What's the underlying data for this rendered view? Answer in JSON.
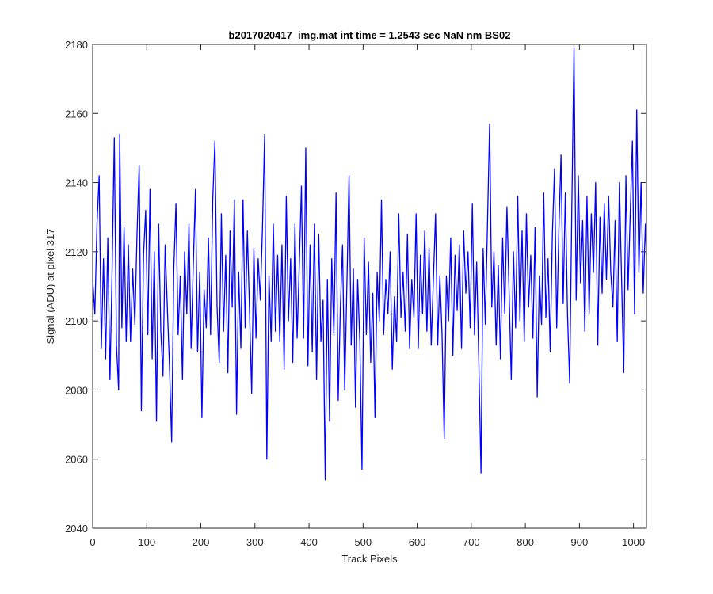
{
  "chart_data": {
    "type": "line",
    "title": "b2017020417_img.mat int time = 1.2543 sec  NaN nm BS02",
    "xlabel": "Track Pixels",
    "ylabel": "Signal (ADU) at pixel 317",
    "xlim": [
      0,
      1024
    ],
    "ylim": [
      2040,
      2180
    ],
    "xticks": [
      0,
      100,
      200,
      300,
      400,
      500,
      600,
      700,
      800,
      900,
      1000
    ],
    "yticks": [
      2040,
      2060,
      2080,
      2100,
      2120,
      2140,
      2160,
      2180
    ],
    "grid": false,
    "legend": "none",
    "line_color": "#0000ff",
    "series": [
      {
        "points": [
          [
            0,
            2112
          ],
          [
            4,
            2102
          ],
          [
            8,
            2128
          ],
          [
            12,
            2142
          ],
          [
            16,
            2092
          ],
          [
            20,
            2118
          ],
          [
            24,
            2089
          ],
          [
            28,
            2124
          ],
          [
            32,
            2083
          ],
          [
            36,
            2115
          ],
          [
            40,
            2153
          ],
          [
            44,
            2093
          ],
          [
            48,
            2080
          ],
          [
            50,
            2154
          ],
          [
            54,
            2098
          ],
          [
            58,
            2127
          ],
          [
            62,
            2094
          ],
          [
            66,
            2122
          ],
          [
            70,
            2094
          ],
          [
            74,
            2115
          ],
          [
            78,
            2099
          ],
          [
            82,
            2125
          ],
          [
            86,
            2145
          ],
          [
            90,
            2074
          ],
          [
            94,
            2119
          ],
          [
            98,
            2132
          ],
          [
            102,
            2096
          ],
          [
            106,
            2138
          ],
          [
            110,
            2089
          ],
          [
            114,
            2120
          ],
          [
            118,
            2071
          ],
          [
            122,
            2128
          ],
          [
            126,
            2097
          ],
          [
            130,
            2084
          ],
          [
            134,
            2122
          ],
          [
            138,
            2104
          ],
          [
            142,
            2087
          ],
          [
            146,
            2065
          ],
          [
            150,
            2115
          ],
          [
            154,
            2134
          ],
          [
            158,
            2096
          ],
          [
            162,
            2113
          ],
          [
            166,
            2083
          ],
          [
            170,
            2120
          ],
          [
            174,
            2102
          ],
          [
            178,
            2128
          ],
          [
            182,
            2092
          ],
          [
            186,
            2116
          ],
          [
            190,
            2138
          ],
          [
            194,
            2091
          ],
          [
            198,
            2114
          ],
          [
            202,
            2072
          ],
          [
            206,
            2109
          ],
          [
            210,
            2098
          ],
          [
            214,
            2124
          ],
          [
            218,
            2096
          ],
          [
            222,
            2135
          ],
          [
            226,
            2152
          ],
          [
            230,
            2104
          ],
          [
            234,
            2088
          ],
          [
            238,
            2131
          ],
          [
            242,
            2097
          ],
          [
            246,
            2119
          ],
          [
            250,
            2085
          ],
          [
            254,
            2126
          ],
          [
            258,
            2104
          ],
          [
            262,
            2135
          ],
          [
            266,
            2073
          ],
          [
            270,
            2114
          ],
          [
            274,
            2092
          ],
          [
            278,
            2135
          ],
          [
            282,
            2098
          ],
          [
            286,
            2126
          ],
          [
            290,
            2103
          ],
          [
            294,
            2079
          ],
          [
            298,
            2121
          ],
          [
            302,
            2095
          ],
          [
            306,
            2118
          ],
          [
            310,
            2106
          ],
          [
            314,
            2127
          ],
          [
            318,
            2154
          ],
          [
            322,
            2060
          ],
          [
            326,
            2113
          ],
          [
            330,
            2094
          ],
          [
            334,
            2128
          ],
          [
            338,
            2097
          ],
          [
            342,
            2119
          ],
          [
            346,
            2094
          ],
          [
            350,
            2122
          ],
          [
            354,
            2086
          ],
          [
            358,
            2136
          ],
          [
            362,
            2100
          ],
          [
            366,
            2118
          ],
          [
            370,
            2088
          ],
          [
            374,
            2128
          ],
          [
            378,
            2095
          ],
          [
            382,
            2116
          ],
          [
            386,
            2139
          ],
          [
            390,
            2095
          ],
          [
            394,
            2150
          ],
          [
            398,
            2087
          ],
          [
            402,
            2122
          ],
          [
            406,
            2091
          ],
          [
            410,
            2128
          ],
          [
            414,
            2083
          ],
          [
            418,
            2125
          ],
          [
            422,
            2094
          ],
          [
            426,
            2106
          ],
          [
            430,
            2054
          ],
          [
            434,
            2112
          ],
          [
            438,
            2071
          ],
          [
            442,
            2118
          ],
          [
            446,
            2096
          ],
          [
            450,
            2137
          ],
          [
            454,
            2077
          ],
          [
            458,
            2104
          ],
          [
            462,
            2122
          ],
          [
            466,
            2080
          ],
          [
            470,
            2110
          ],
          [
            474,
            2142
          ],
          [
            478,
            2093
          ],
          [
            482,
            2115
          ],
          [
            486,
            2075
          ],
          [
            490,
            2112
          ],
          [
            494,
            2094
          ],
          [
            498,
            2057
          ],
          [
            502,
            2124
          ],
          [
            506,
            2096
          ],
          [
            510,
            2117
          ],
          [
            514,
            2088
          ],
          [
            518,
            2108
          ],
          [
            522,
            2072
          ],
          [
            526,
            2114
          ],
          [
            530,
            2100
          ],
          [
            534,
            2135
          ],
          [
            538,
            2096
          ],
          [
            542,
            2112
          ],
          [
            546,
            2102
          ],
          [
            550,
            2120
          ],
          [
            554,
            2086
          ],
          [
            558,
            2107
          ],
          [
            562,
            2094
          ],
          [
            566,
            2131
          ],
          [
            570,
            2101
          ],
          [
            574,
            2114
          ],
          [
            578,
            2097
          ],
          [
            582,
            2125
          ],
          [
            586,
            2092
          ],
          [
            590,
            2112
          ],
          [
            594,
            2101
          ],
          [
            598,
            2131
          ],
          [
            602,
            2092
          ],
          [
            606,
            2119
          ],
          [
            610,
            2102
          ],
          [
            614,
            2126
          ],
          [
            618,
            2097
          ],
          [
            622,
            2121
          ],
          [
            626,
            2093
          ],
          [
            630,
            2112
          ],
          [
            634,
            2131
          ],
          [
            638,
            2093
          ],
          [
            642,
            2113
          ],
          [
            646,
            2096
          ],
          [
            650,
            2066
          ],
          [
            654,
            2113
          ],
          [
            658,
            2100
          ],
          [
            662,
            2124
          ],
          [
            666,
            2090
          ],
          [
            670,
            2119
          ],
          [
            674,
            2103
          ],
          [
            678,
            2122
          ],
          [
            682,
            2092
          ],
          [
            686,
            2126
          ],
          [
            690,
            2108
          ],
          [
            694,
            2120
          ],
          [
            698,
            2098
          ],
          [
            702,
            2134
          ],
          [
            706,
            2096
          ],
          [
            710,
            2117
          ],
          [
            714,
            2088
          ],
          [
            718,
            2056
          ],
          [
            722,
            2121
          ],
          [
            726,
            2099
          ],
          [
            730,
            2128
          ],
          [
            734,
            2157
          ],
          [
            738,
            2104
          ],
          [
            742,
            2120
          ],
          [
            746,
            2093
          ],
          [
            750,
            2116
          ],
          [
            754,
            2089
          ],
          [
            758,
            2124
          ],
          [
            762,
            2102
          ],
          [
            766,
            2133
          ],
          [
            770,
            2108
          ],
          [
            774,
            2083
          ],
          [
            778,
            2120
          ],
          [
            782,
            2098
          ],
          [
            786,
            2136
          ],
          [
            790,
            2100
          ],
          [
            794,
            2126
          ],
          [
            798,
            2094
          ],
          [
            802,
            2131
          ],
          [
            806,
            2104
          ],
          [
            810,
            2119
          ],
          [
            814,
            2095
          ],
          [
            818,
            2127
          ],
          [
            822,
            2078
          ],
          [
            826,
            2113
          ],
          [
            830,
            2099
          ],
          [
            834,
            2137
          ],
          [
            838,
            2101
          ],
          [
            842,
            2118
          ],
          [
            846,
            2091
          ],
          [
            850,
            2125
          ],
          [
            854,
            2144
          ],
          [
            858,
            2098
          ],
          [
            862,
            2126
          ],
          [
            866,
            2148
          ],
          [
            870,
            2105
          ],
          [
            874,
            2137
          ],
          [
            878,
            2102
          ],
          [
            882,
            2082
          ],
          [
            886,
            2133
          ],
          [
            890,
            2179
          ],
          [
            894,
            2106
          ],
          [
            898,
            2142
          ],
          [
            902,
            2111
          ],
          [
            906,
            2129
          ],
          [
            910,
            2097
          ],
          [
            914,
            2136
          ],
          [
            918,
            2102
          ],
          [
            922,
            2131
          ],
          [
            926,
            2114
          ],
          [
            930,
            2140
          ],
          [
            934,
            2093
          ],
          [
            938,
            2130
          ],
          [
            942,
            2108
          ],
          [
            946,
            2134
          ],
          [
            950,
            2112
          ],
          [
            954,
            2136
          ],
          [
            958,
            2114
          ],
          [
            962,
            2104
          ],
          [
            966,
            2129
          ],
          [
            970,
            2094
          ],
          [
            974,
            2140
          ],
          [
            978,
            2112
          ],
          [
            982,
            2085
          ],
          [
            986,
            2142
          ],
          [
            990,
            2109
          ],
          [
            994,
            2131
          ],
          [
            998,
            2152
          ],
          [
            1002,
            2102
          ],
          [
            1006,
            2161
          ],
          [
            1010,
            2114
          ],
          [
            1014,
            2140
          ],
          [
            1018,
            2108
          ],
          [
            1022,
            2128
          ],
          [
            1024,
            2119
          ]
        ]
      }
    ]
  }
}
